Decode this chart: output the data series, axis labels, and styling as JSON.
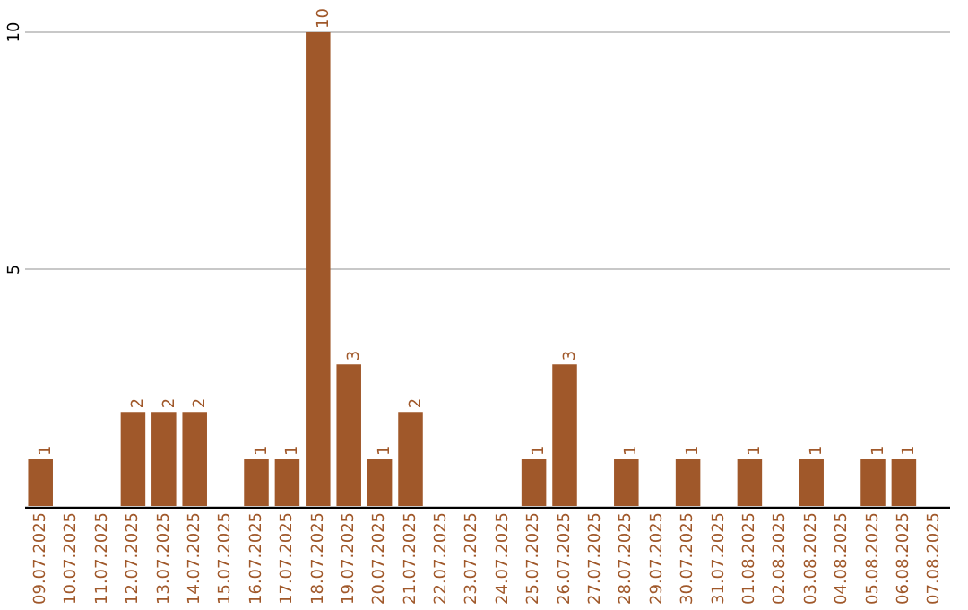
{
  "chart_data": {
    "type": "bar",
    "categories": [
      "09.07.2025",
      "10.07.2025",
      "11.07.2025",
      "12.07.2025",
      "13.07.2025",
      "14.07.2025",
      "15.07.2025",
      "16.07.2025",
      "17.07.2025",
      "18.07.2025",
      "19.07.2025",
      "20.07.2025",
      "21.07.2025",
      "22.07.2025",
      "23.07.2025",
      "24.07.2025",
      "25.07.2025",
      "26.07.2025",
      "27.07.2025",
      "28.07.2025",
      "29.07.2025",
      "30.07.2025",
      "31.07.2025",
      "01.08.2025",
      "02.08.2025",
      "03.08.2025",
      "04.08.2025",
      "05.08.2025",
      "06.08.2025",
      "07.08.2025"
    ],
    "values": [
      1,
      0,
      0,
      2,
      2,
      2,
      0,
      1,
      1,
      10,
      3,
      1,
      2,
      0,
      0,
      0,
      1,
      3,
      0,
      1,
      0,
      1,
      0,
      1,
      0,
      1,
      0,
      1,
      1,
      0
    ],
    "value_labels": [
      "1",
      null,
      null,
      "2",
      "2",
      "2",
      null,
      "1",
      "1",
      "10",
      "3",
      "1",
      "2",
      null,
      null,
      null,
      "1",
      "3",
      null,
      "1",
      null,
      "1",
      null,
      "1",
      null,
      "1",
      null,
      "1",
      "1",
      null
    ],
    "color": "#a0582a",
    "ylim": [
      0,
      10
    ],
    "yticks": [
      {
        "value": 0,
        "label": null
      },
      5,
      10
    ],
    "grid": "y"
  }
}
